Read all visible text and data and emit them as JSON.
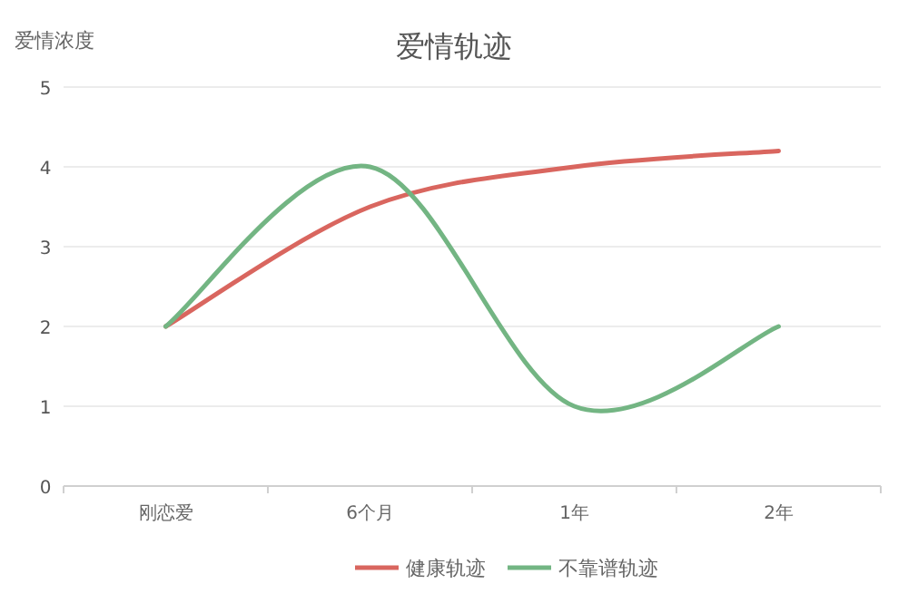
{
  "chart_data": {
    "type": "line",
    "title": "爱情轨迹",
    "ylabel": "爱情浓度",
    "categories": [
      "刚恋爱",
      "6个月",
      "1年",
      "2年"
    ],
    "series": [
      {
        "name": "健康轨迹",
        "color": "#d9665f",
        "values": [
          2,
          3.5,
          4.0,
          4.2
        ]
      },
      {
        "name": "不靠谱轨迹",
        "color": "#73b583",
        "values": [
          2,
          4,
          1,
          2
        ]
      }
    ],
    "ylim": [
      0,
      5
    ],
    "yticks": [
      0,
      1,
      2,
      3,
      4,
      5
    ],
    "grid": "y",
    "legend": "bottom",
    "line_style": "solid"
  }
}
